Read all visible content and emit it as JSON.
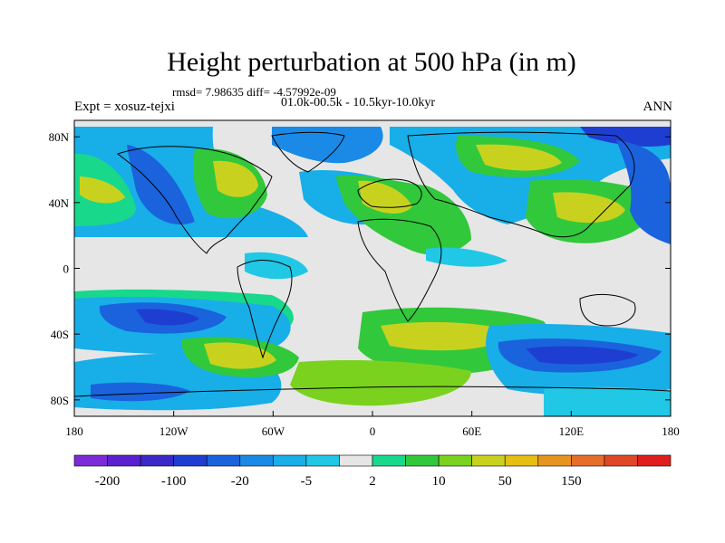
{
  "title": "Height perturbation at 500 hPa (in m)",
  "stats": "rmsd= 7.98635 diff= -4.57992e-09",
  "experiment": "Expt = xosuz-tejxi",
  "period": "01.0k-00.5k - 10.5kyr-10.0kyr",
  "season": "ANN",
  "map": {
    "lat_ticks": [
      "80N",
      "40N",
      "0",
      "40S",
      "80S"
    ],
    "lat_values": [
      80,
      40,
      0,
      -40,
      -80
    ],
    "lon_ticks": [
      "180",
      "120W",
      "60W",
      "0",
      "60E",
      "120E",
      "180"
    ],
    "lon_values": [
      -180,
      -120,
      -60,
      0,
      60,
      120,
      180
    ],
    "lat_range": [
      -90,
      90
    ],
    "lon_range": [
      -180,
      180
    ]
  },
  "legend": {
    "colors": [
      "#7d2ad8",
      "#5b20d0",
      "#3a28c8",
      "#1e3ed2",
      "#1a63dd",
      "#1a8ae6",
      "#18aee8",
      "#20c8e6",
      "#e6e6e6",
      "#18d88c",
      "#32c83c",
      "#7ad21e",
      "#c8d21e",
      "#e6be14",
      "#e6961e",
      "#e66e28",
      "#e04628",
      "#e01e1e"
    ],
    "labels": [
      "-200",
      "-100",
      "-20",
      "-5",
      "2",
      "10",
      "50",
      "150"
    ]
  }
}
